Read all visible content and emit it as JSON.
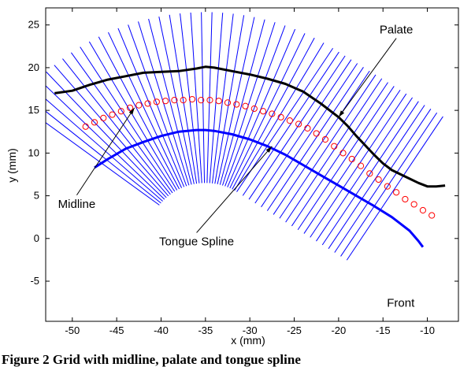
{
  "figure": {
    "caption": "Figure 2 Grid with midline, palate and tongue spline"
  },
  "chart_data": {
    "type": "line",
    "xlabel": "x (mm)",
    "ylabel": "y (mm)",
    "xlim": [
      -53,
      -6.5
    ],
    "ylim": [
      -9.7,
      27
    ],
    "x_ticks": [
      -50,
      -45,
      -40,
      -35,
      -30,
      -25,
      -20,
      -15,
      -10
    ],
    "y_ticks": [
      25,
      20,
      15,
      10,
      5,
      0,
      -5
    ],
    "grid": false,
    "legend": "none",
    "colors": {
      "grid_lines": "#0000ff",
      "tongue": "#0000ff",
      "palate": "#000000",
      "midline": "#ff0000"
    },
    "grid_lines": {
      "count": 52,
      "rotation_center": {
        "x": -35,
        "y": 0
      },
      "inner_radius": 6.5,
      "outer_radius": 26.5,
      "angle_start_deg": 143,
      "angle_step_deg": 2.6,
      "count_rotating": 34,
      "translate_step": 0.82
    },
    "series": [
      {
        "name": "Palate",
        "style": "line",
        "x": [
          -52,
          -50,
          -48,
          -46,
          -44,
          -42,
          -40,
          -38,
          -36,
          -35,
          -34,
          -32,
          -30,
          -28,
          -26,
          -24,
          -22,
          -20,
          -19,
          -18,
          -17,
          -16,
          -15,
          -14,
          -13,
          -12,
          -11,
          -10,
          -9,
          -8
        ],
        "y": [
          17,
          17.3,
          18,
          18.6,
          19,
          19.4,
          19.5,
          19.6,
          19.9,
          20.1,
          20,
          19.6,
          19.2,
          18.7,
          18.1,
          17.2,
          15.8,
          14.2,
          13.2,
          12,
          10.9,
          9.8,
          8.8,
          8,
          7.5,
          7,
          6.5,
          6.1,
          6.1,
          6.2
        ]
      },
      {
        "name": "Midline",
        "style": "circles",
        "x": [
          -48.5,
          -47.5,
          -46.5,
          -45.5,
          -44.5,
          -43.5,
          -42.5,
          -41.5,
          -40.5,
          -39.5,
          -38.5,
          -37.5,
          -36.5,
          -35.5,
          -34.5,
          -33.5,
          -32.5,
          -31.5,
          -30.5,
          -29.5,
          -28.5,
          -27.5,
          -26.5,
          -25.5,
          -24.5,
          -23.5,
          -22.5,
          -21.5,
          -20.5,
          -19.5,
          -18.5,
          -17.5,
          -16.5,
          -15.5,
          -14.5,
          -13.5,
          -12.5,
          -11.5,
          -10.5,
          -9.5
        ],
        "y": [
          13.1,
          13.6,
          14.1,
          14.5,
          14.9,
          15.3,
          15.6,
          15.8,
          16,
          16.1,
          16.2,
          16.2,
          16.3,
          16.2,
          16.2,
          16.1,
          15.9,
          15.7,
          15.5,
          15.2,
          14.9,
          14.6,
          14.2,
          13.8,
          13.4,
          12.9,
          12.3,
          11.6,
          10.8,
          10,
          9.3,
          8.5,
          7.6,
          6.9,
          6.1,
          5.4,
          4.6,
          4,
          3.3,
          2.7
        ]
      },
      {
        "name": "Tongue Spline",
        "style": "line",
        "x": [
          -47.5,
          -46,
          -44,
          -42,
          -40,
          -38,
          -36,
          -35,
          -34,
          -32,
          -30,
          -28,
          -26,
          -24,
          -22,
          -20,
          -18,
          -16,
          -14,
          -12,
          -11,
          -10.5
        ],
        "y": [
          8.3,
          9.3,
          10.5,
          11.3,
          12,
          12.5,
          12.7,
          12.7,
          12.6,
          12.2,
          11.6,
          10.8,
          9.8,
          8.6,
          7.4,
          6.2,
          5,
          3.8,
          2.5,
          0.9,
          -0.3,
          -1
        ]
      }
    ],
    "annotations": [
      {
        "text": "Palate",
        "x": -20,
        "y": 14.2,
        "label_x": -13.5,
        "label_y": 24
      },
      {
        "text": "Midline",
        "x": -43,
        "y": 15.3,
        "label_x": -49.5,
        "label_y": 3.6
      },
      {
        "text": "Tongue Spline",
        "x": -27.5,
        "y": 10.8,
        "label_x": -36,
        "label_y": -0.8
      },
      {
        "text": "Front",
        "x": -13,
        "y": -8,
        "label_x": -13,
        "label_y": -8
      }
    ]
  }
}
